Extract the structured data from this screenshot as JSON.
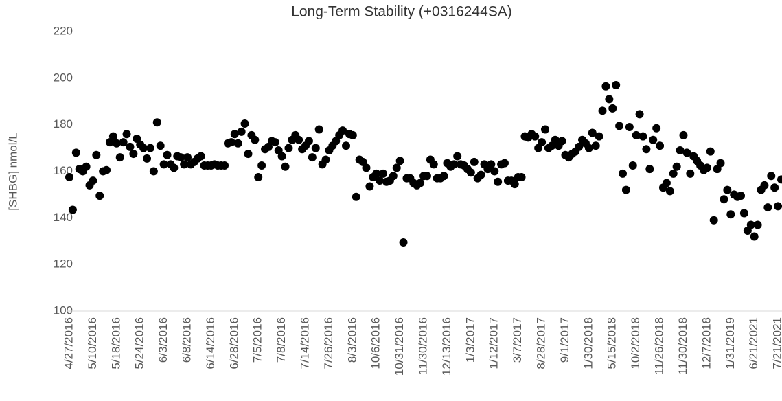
{
  "chart_data": {
    "type": "scatter",
    "title": "Long-Term Stability (+0316244SA)",
    "y_label": "[SHBG] nmol/L",
    "categories": [
      "4/27/2016",
      null,
      null,
      null,
      null,
      null,
      null,
      "5/10/2016",
      null,
      null,
      null,
      null,
      null,
      null,
      "5/18/2016",
      null,
      null,
      null,
      null,
      null,
      null,
      "5/24/2016",
      null,
      null,
      null,
      null,
      null,
      null,
      "6/3/2016",
      null,
      null,
      null,
      null,
      null,
      null,
      "6/8/2016",
      null,
      null,
      null,
      null,
      null,
      null,
      "6/14/2016",
      null,
      null,
      null,
      null,
      null,
      null,
      "6/28/2016",
      null,
      null,
      null,
      null,
      null,
      null,
      "7/5/2016",
      null,
      null,
      null,
      null,
      null,
      null,
      "7/8/2016",
      null,
      null,
      null,
      null,
      null,
      null,
      "7/14/2016",
      null,
      null,
      null,
      null,
      null,
      null,
      "7/26/2016",
      null,
      null,
      null,
      null,
      null,
      null,
      "8/3/2016",
      null,
      null,
      null,
      null,
      null,
      null,
      "10/6/2016",
      null,
      null,
      null,
      null,
      null,
      null,
      "10/31/2016",
      null,
      null,
      null,
      null,
      null,
      null,
      "11/30/2016",
      null,
      null,
      null,
      null,
      null,
      null,
      "12/13/2016",
      null,
      null,
      null,
      null,
      null,
      null,
      "1/3/2017",
      null,
      null,
      null,
      null,
      null,
      null,
      "1/12/2017",
      null,
      null,
      null,
      null,
      null,
      null,
      "3/7/2017",
      null,
      null,
      null,
      null,
      null,
      null,
      "8/28/2017",
      null,
      null,
      null,
      null,
      null,
      null,
      "9/1/2017",
      null,
      null,
      null,
      null,
      null,
      null,
      "1/30/2018",
      null,
      null,
      null,
      null,
      null,
      null,
      "5/15/2018",
      null,
      null,
      null,
      null,
      null,
      null,
      "10/2/2018",
      null,
      null,
      null,
      null,
      null,
      null,
      "11/26/2018",
      null,
      null,
      null,
      null,
      null,
      null,
      "11/30/2018",
      null,
      null,
      null,
      null,
      null,
      null,
      "12/7/2018",
      null,
      null,
      null,
      null,
      null,
      null,
      "1/31/2019",
      null,
      null,
      null,
      null,
      null,
      null,
      "6/21/2021",
      null,
      null,
      null,
      null,
      null,
      null,
      "7/21/2021",
      null
    ],
    "values": [
      157.5,
      143.5,
      168,
      161,
      160,
      162,
      154,
      156,
      167,
      149.5,
      160,
      160.5,
      172.5,
      175,
      172,
      166,
      172.5,
      176,
      170.5,
      167.5,
      174,
      171.5,
      170,
      165.5,
      170,
      160,
      181,
      171,
      163,
      167,
      163,
      161.5,
      166.5,
      166,
      163,
      166,
      163,
      164,
      165.5,
      166.5,
      162.5,
      162.5,
      162.5,
      163,
      162.5,
      162.5,
      162.5,
      172,
      172.5,
      176,
      172,
      177,
      180.5,
      167.5,
      175.5,
      173.5,
      157.5,
      162.5,
      169.5,
      170.5,
      173,
      172.5,
      169,
      166.5,
      162,
      170,
      173.5,
      175.5,
      173.5,
      169.5,
      171,
      173,
      166,
      170,
      178,
      163,
      165,
      169,
      171,
      173,
      175.5,
      177.5,
      171,
      176,
      175.5,
      149,
      165,
      164,
      161.5,
      153.5,
      157.5,
      159,
      156,
      159,
      155.5,
      156,
      158,
      161.5,
      164.5,
      129.5,
      157,
      157,
      155,
      154,
      155,
      158,
      158,
      165,
      163,
      157,
      157,
      158,
      163.5,
      162,
      163,
      166.5,
      163,
      162.5,
      161,
      159.5,
      164,
      157,
      158.5,
      163,
      161,
      163,
      160,
      155.5,
      163,
      163.5,
      156,
      156,
      154.5,
      157.5,
      157.5,
      175,
      174.5,
      176,
      175,
      170,
      172.5,
      178,
      170,
      171,
      173.5,
      171,
      173,
      167,
      166,
      167.5,
      168.5,
      170.5,
      173.5,
      172,
      170,
      176.5,
      171,
      175,
      186,
      196.5,
      191,
      187,
      197,
      179.5,
      159,
      152,
      179,
      162.5,
      175.5,
      184.5,
      175,
      169.5,
      161,
      173.5,
      178.5,
      171,
      153,
      155,
      151.5,
      159,
      162,
      169,
      175.5,
      168,
      159,
      166.5,
      164.5,
      162.5,
      160.5,
      161.5,
      168.5,
      139,
      161,
      163.5,
      148,
      152,
      141.5,
      150,
      149,
      149.5,
      142,
      134.5,
      137,
      132,
      137,
      152,
      154,
      144.5,
      158,
      153,
      145,
      156.5
    ],
    "color": "#000000",
    "ylim": [
      100,
      220
    ],
    "yticks": [
      100,
      120,
      140,
      160,
      180,
      200,
      220
    ],
    "grid": false
  }
}
